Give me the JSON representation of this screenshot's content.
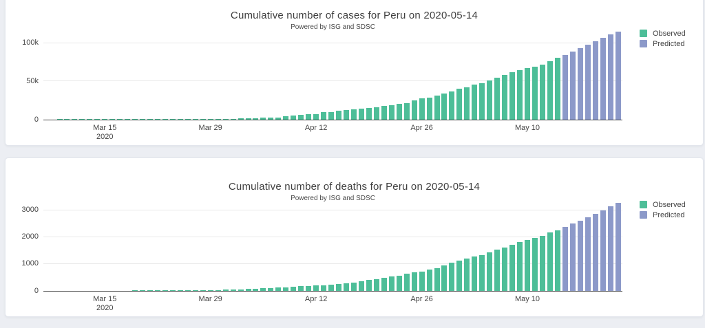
{
  "page": {
    "background_color": "#eceef3",
    "card_color": "#ffffff"
  },
  "chart_data": [
    {
      "type": "bar",
      "title": "Cumulative number of cases for Peru on 2020-05-14",
      "subtitle": "Powered by ISG and SDSC",
      "legend_position": "top-right",
      "grid": true,
      "ylim": [
        0,
        115000
      ],
      "yticks": [
        {
          "label": "0",
          "value": 0
        },
        {
          "label": "50k",
          "value": 50000
        },
        {
          "label": "100k",
          "value": 100000
        }
      ],
      "xticks": [
        {
          "label": "Mar 15",
          "sublabel": "2020",
          "index": 6
        },
        {
          "label": "Mar 29",
          "sublabel": "",
          "index": 20
        },
        {
          "label": "Apr 12",
          "sublabel": "",
          "index": 34
        },
        {
          "label": "Apr 26",
          "sublabel": "",
          "index": 48
        },
        {
          "label": "May 10",
          "sublabel": "",
          "index": 62
        }
      ],
      "series": [
        {
          "name": "Observed",
          "color": "#4dbe98",
          "start_date": "2020-03-09",
          "end_date": "2020-05-14",
          "frequency": "daily",
          "values": [
            11,
            15,
            17,
            22,
            38,
            43,
            43,
            86,
            117,
            145,
            234,
            263,
            318,
            363,
            395,
            416,
            480,
            580,
            635,
            671,
            852,
            950,
            1065,
            1323,
            1414,
            1595,
            1746,
            2281,
            2561,
            2954,
            4342,
            5256,
            5897,
            6848,
            7519,
            9784,
            10303,
            11475,
            12491,
            13489,
            14420,
            15628,
            16325,
            17837,
            19250,
            20914,
            21648,
            25331,
            27517,
            28699,
            31190,
            33931,
            36976,
            40459,
            42534,
            45928,
            47372,
            51189,
            54817,
            58526,
            61847,
            65015,
            67307,
            68822,
            72059,
            76306,
            80604
          ]
        },
        {
          "name": "Predicted",
          "color": "#8c99c9",
          "start_date": "2020-05-15",
          "end_date": "2020-05-22",
          "frequency": "daily",
          "values": [
            84800,
            89100,
            93400,
            97800,
            102200,
            106600,
            111000,
            115400
          ]
        }
      ]
    },
    {
      "type": "bar",
      "title": "Cumulative number of deaths for Peru on 2020-05-14",
      "subtitle": "Powered by ISG and SDSC",
      "legend_position": "top-right",
      "grid": true,
      "ylim": [
        0,
        3280
      ],
      "yticks": [
        {
          "label": "0",
          "value": 0
        },
        {
          "label": "1000",
          "value": 1000
        },
        {
          "label": "2000",
          "value": 2000
        },
        {
          "label": "3000",
          "value": 3000
        }
      ],
      "xticks": [
        {
          "label": "Mar 15",
          "sublabel": "2020",
          "index": 6
        },
        {
          "label": "Mar 29",
          "sublabel": "",
          "index": 20
        },
        {
          "label": "Apr 12",
          "sublabel": "",
          "index": 34
        },
        {
          "label": "Apr 26",
          "sublabel": "",
          "index": 48
        },
        {
          "label": "May 10",
          "sublabel": "",
          "index": 62
        }
      ],
      "series": [
        {
          "name": "Observed",
          "color": "#4dbe98",
          "start_date": "2020-03-09",
          "end_date": "2020-05-14",
          "frequency": "daily",
          "values": [
            0,
            0,
            0,
            0,
            0,
            0,
            0,
            0,
            0,
            0,
            3,
            4,
            5,
            7,
            9,
            11,
            13,
            16,
            21,
            30,
            34,
            38,
            47,
            55,
            61,
            73,
            83,
            92,
            107,
            121,
            138,
            148,
            169,
            181,
            193,
            216,
            230,
            254,
            274,
            300,
            348,
            400,
            445,
            484,
            530,
            572,
            634,
            700,
            728,
            782,
            854,
            943,
            1051,
            1124,
            1200,
            1286,
            1344,
            1444,
            1533,
            1627,
            1714,
            1814,
            1889,
            1961,
            2057,
            2169,
            2267
          ]
        },
        {
          "name": "Predicted",
          "color": "#8c99c9",
          "start_date": "2020-05-15",
          "end_date": "2020-05-22",
          "frequency": "daily",
          "values": [
            2380,
            2500,
            2620,
            2750,
            2880,
            3010,
            3150,
            3290
          ]
        }
      ]
    }
  ]
}
